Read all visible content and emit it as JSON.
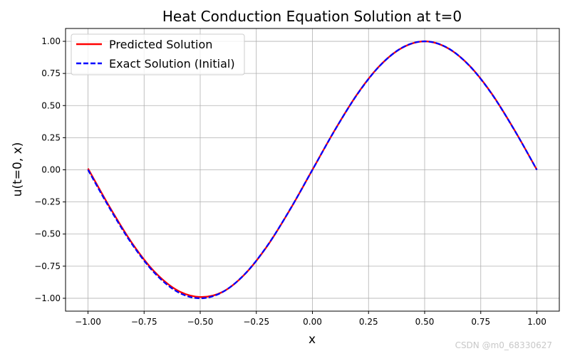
{
  "chart_data": {
    "type": "line",
    "title": "Heat Conduction Equation Solution at t=0",
    "xlabel": "x",
    "ylabel": "u(t=0, x)",
    "xlim": [
      -1.1,
      1.1
    ],
    "ylim": [
      -1.1,
      1.1
    ],
    "xticks": [
      -1.0,
      -0.75,
      -0.5,
      -0.25,
      0.0,
      0.25,
      0.5,
      0.75,
      1.0
    ],
    "xtick_labels": [
      "−1.00",
      "−0.75",
      "−0.50",
      "−0.25",
      "0.00",
      "0.25",
      "0.50",
      "0.75",
      "1.00"
    ],
    "yticks": [
      -1.0,
      -0.75,
      -0.5,
      -0.25,
      0.0,
      0.25,
      0.5,
      0.75,
      1.0
    ],
    "ytick_labels": [
      "−1.00",
      "−0.75",
      "−0.50",
      "−0.25",
      "0.00",
      "0.25",
      "0.50",
      "0.75",
      "1.00"
    ],
    "grid": true,
    "legend_position": "top-left",
    "x": [
      -1.0,
      -0.9,
      -0.8,
      -0.7,
      -0.6,
      -0.5,
      -0.4,
      -0.3,
      -0.2,
      -0.1,
      0.0,
      0.1,
      0.2,
      0.3,
      0.4,
      0.5,
      0.6,
      0.7,
      0.8,
      0.9,
      1.0
    ],
    "series": [
      {
        "name": "Predicted Solution",
        "color": "#ff0000",
        "style": "solid",
        "values": [
          0.01,
          -0.3,
          -0.58,
          -0.8,
          -0.94,
          -0.99,
          -0.95,
          -0.81,
          -0.59,
          -0.31,
          0.0,
          0.31,
          0.59,
          0.81,
          0.95,
          1.0,
          0.95,
          0.81,
          0.59,
          0.31,
          0.0
        ]
      },
      {
        "name": "Exact Solution (Initial)",
        "color": "#0000ff",
        "style": "dashed",
        "values": [
          0.0,
          -0.309,
          -0.588,
          -0.809,
          -0.951,
          -1.0,
          -0.951,
          -0.809,
          -0.588,
          -0.309,
          0.0,
          0.309,
          0.588,
          0.809,
          0.951,
          1.0,
          0.951,
          0.809,
          0.588,
          0.309,
          0.0
        ]
      }
    ]
  },
  "watermark": "CSDN @m0_68330627"
}
